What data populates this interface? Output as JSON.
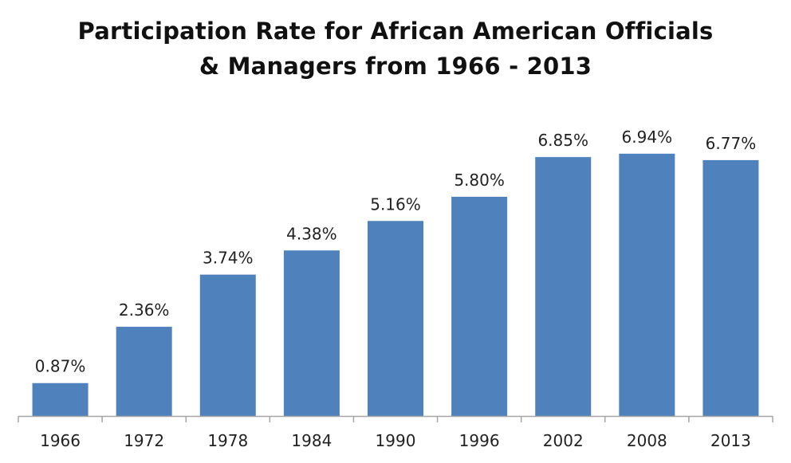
{
  "chart_data": {
    "type": "bar",
    "title_lines": [
      "Participation Rate for African American Officials",
      "& Managers from 1966 - 2013"
    ],
    "categories": [
      "1966",
      "1972",
      "1978",
      "1984",
      "1990",
      "1996",
      "2002",
      "2008",
      "2013"
    ],
    "values": [
      0.87,
      2.36,
      3.74,
      4.38,
      5.16,
      5.8,
      6.85,
      6.94,
      6.77
    ],
    "value_labels": [
      "0.87%",
      "2.36%",
      "3.74%",
      "4.38%",
      "5.16%",
      "5.80%",
      "6.85%",
      "6.94%",
      "6.77%"
    ],
    "xlabel": "",
    "ylabel": "",
    "ylim": [
      0,
      7
    ],
    "grid": false,
    "legend": "none",
    "colors": {
      "bar": "#4f81bd",
      "axis": "#a6a6a6",
      "text": "#222222"
    }
  }
}
